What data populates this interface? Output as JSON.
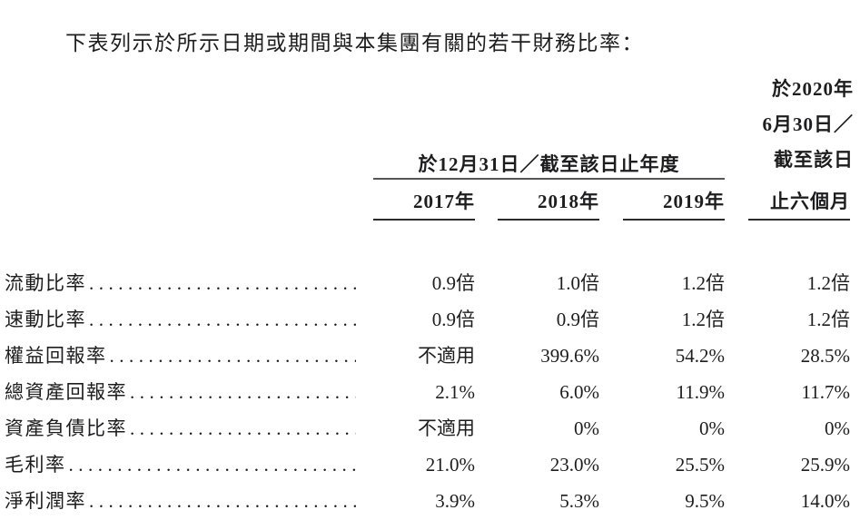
{
  "intro": "下表列示於所示日期或期間與本集團有關的若干財務比率：",
  "colors": {
    "ink": "#1d1d1f",
    "rule_gray": "#55565a",
    "rule_dark": "#2b2b2c"
  },
  "table": {
    "group_header": "於12月31日／截至該日止年度",
    "period_2020_lines": [
      "於2020年",
      "6月30日／",
      "截至該日"
    ],
    "six_months_header": "止六個月",
    "year_headers": [
      "2017年",
      "2018年",
      "2019年"
    ],
    "rows": [
      {
        "label": "流動比率",
        "values": [
          "0.9倍",
          "1.0倍",
          "1.2倍",
          "1.2倍"
        ]
      },
      {
        "label": "速動比率",
        "values": [
          "0.9倍",
          "0.9倍",
          "1.2倍",
          "1.2倍"
        ]
      },
      {
        "label": "權益回報率",
        "values": [
          "不適用",
          "399.6%",
          "54.2%",
          "28.5%"
        ]
      },
      {
        "label": "總資產回報率",
        "values": [
          "2.1%",
          "6.0%",
          "11.9%",
          "11.7%"
        ]
      },
      {
        "label": "資產負債比率",
        "values": [
          "不適用",
          "0%",
          "0%",
          "0%"
        ]
      },
      {
        "label": "毛利率",
        "values": [
          "21.0%",
          "23.0%",
          "25.5%",
          "25.9%"
        ]
      },
      {
        "label": "淨利潤率",
        "values": [
          "3.9%",
          "5.3%",
          "9.5%",
          "14.0%"
        ]
      }
    ]
  }
}
